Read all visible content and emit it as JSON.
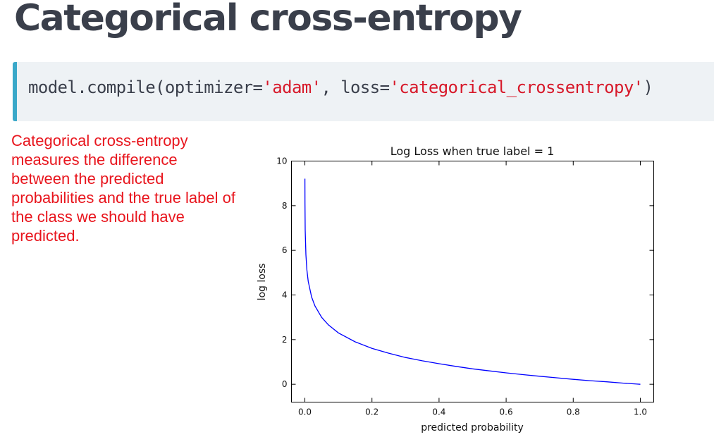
{
  "slide": {
    "title": "Categorical cross-entropy",
    "description": "Categorical cross-entropy measures the difference between the predicted probabilities and the true label of the class we should have predicted."
  },
  "code": {
    "prefix": "model.compile(optimizer=",
    "optimizer_value": "'adam'",
    "middle": ", loss=",
    "loss_value": "'categorical_crossentropy'",
    "suffix": ")"
  },
  "colors": {
    "line": "#0000ff",
    "description_text": "#e8151d",
    "code_string": "#d7192a",
    "code_border": "#3aa8c9"
  },
  "chart_data": {
    "type": "line",
    "title": "Log Loss when true label = 1",
    "xlabel": "predicted probability",
    "ylabel": "log loss",
    "xlim": [
      -0.04,
      1.04
    ],
    "ylim": [
      -0.8,
      10
    ],
    "xticks": [
      0.0,
      0.2,
      0.4,
      0.6,
      0.8,
      1.0
    ],
    "xtick_labels": [
      "0.0",
      "0.2",
      "0.4",
      "0.6",
      "0.8",
      "1.0"
    ],
    "yticks": [
      0,
      2,
      4,
      6,
      8,
      10
    ],
    "ytick_labels": [
      "0",
      "2",
      "4",
      "6",
      "8",
      "10"
    ],
    "grid": false,
    "series": [
      {
        "x": [
          0.0001,
          0.0003,
          0.001,
          0.003,
          0.006,
          0.01,
          0.02,
          0.03,
          0.05,
          0.07,
          0.1,
          0.15,
          0.2,
          0.25,
          0.3,
          0.35,
          0.4,
          0.45,
          0.5,
          0.55,
          0.6,
          0.65,
          0.7,
          0.75,
          0.8,
          0.85,
          0.9,
          0.95,
          0.99,
          1.0
        ],
        "y": [
          9.21,
          8.11,
          6.91,
          5.81,
          5.12,
          4.61,
          3.91,
          3.51,
          3.0,
          2.66,
          2.3,
          1.9,
          1.61,
          1.39,
          1.2,
          1.05,
          0.92,
          0.8,
          0.69,
          0.6,
          0.51,
          0.43,
          0.36,
          0.29,
          0.22,
          0.16,
          0.11,
          0.05,
          0.01,
          0.0
        ]
      }
    ]
  }
}
